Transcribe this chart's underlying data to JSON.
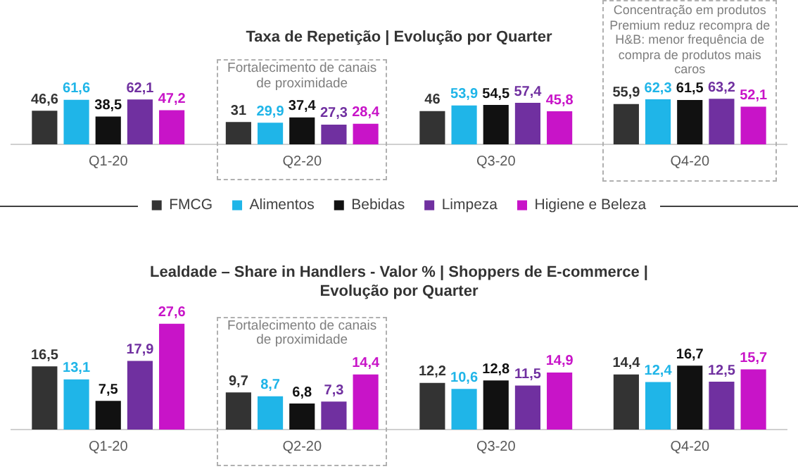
{
  "chart_data": [
    {
      "type": "bar",
      "title": "Taxa de Repetição | Evolução por Quarter",
      "categories": [
        "Q1-20",
        "Q2-20",
        "Q3-20",
        "Q4-20"
      ],
      "legend": "bottom",
      "grid": false,
      "series": [
        {
          "name": "FMCG",
          "color": "#333333",
          "values": [
            46.6,
            31,
            46,
            55.9
          ],
          "value_labels": [
            "46,6",
            "31",
            "46",
            "55,9"
          ]
        },
        {
          "name": "Alimentos",
          "color": "#1fb5e8",
          "values": [
            61.6,
            29.9,
            53.9,
            62.3
          ],
          "value_labels": [
            "61,6",
            "29,9",
            "53,9",
            "62,3"
          ]
        },
        {
          "name": "Bebidas",
          "color": "#111111",
          "values": [
            38.5,
            37.4,
            54.5,
            61.5
          ],
          "value_labels": [
            "38,5",
            "37,4",
            "54,5",
            "61,5"
          ]
        },
        {
          "name": "Limpeza",
          "color": "#7030a0",
          "values": [
            62.1,
            27.3,
            57.4,
            63.2
          ],
          "value_labels": [
            "62,1",
            "27,3",
            "57,4",
            "63,2"
          ]
        },
        {
          "name": "Higiene e Beleza",
          "color": "#c814c8",
          "values": [
            47.2,
            28.4,
            45.8,
            52.1
          ],
          "value_labels": [
            "47,2",
            "28,4",
            "45,8",
            "52,1"
          ]
        }
      ],
      "annotations": [
        "Fortalecimento de canais de proximidade",
        "Concentração em produtos Premium reduz recompra de H&B: menor frequência de compra de produtos mais caros"
      ]
    },
    {
      "type": "bar",
      "title": "Lealdade – Share in Handlers - Valor % | Shoppers de E-commerce | Evolução por Quarter",
      "categories": [
        "Q1-20",
        "Q2-20",
        "Q3-20",
        "Q4-20"
      ],
      "grid": false,
      "series": [
        {
          "color": "#333333",
          "values": [
            16.5,
            9.7,
            12.2,
            14.4
          ],
          "value_labels": [
            "16,5",
            "9,7",
            "12,2",
            "14,4"
          ]
        },
        {
          "color": "#1fb5e8",
          "values": [
            13.1,
            8.7,
            10.6,
            12.4
          ],
          "value_labels": [
            "13,1",
            "8,7",
            "10,6",
            "12,4"
          ]
        },
        {
          "color": "#111111",
          "values": [
            7.5,
            6.8,
            12.8,
            16.7
          ],
          "value_labels": [
            "7,5",
            "6,8",
            "12,8",
            "16,7"
          ]
        },
        {
          "color": "#7030a0",
          "values": [
            17.9,
            7.3,
            11.5,
            12.5
          ],
          "value_labels": [
            "17,9",
            "7,3",
            "11,5",
            "12,5"
          ]
        },
        {
          "color": "#c814c8",
          "values": [
            27.6,
            14.4,
            14.9,
            15.7
          ],
          "value_labels": [
            "27,6",
            "14,4",
            "14,9",
            "15,7"
          ]
        }
      ],
      "annotations": [
        "Fortalecimento de canais de proximidade"
      ]
    }
  ]
}
